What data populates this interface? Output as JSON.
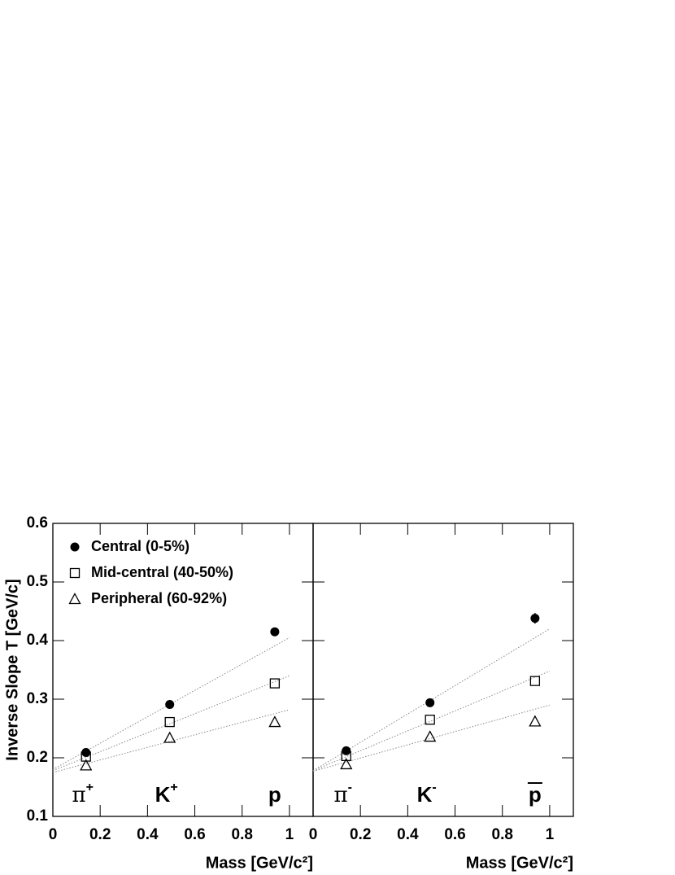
{
  "chart_data": [
    {
      "type": "scatter",
      "ylabel": "Inverse Slope T [GeV/c]",
      "xlabel": "Mass [GeV/c²]",
      "xlim": [
        0,
        1.1
      ],
      "ylim": [
        0.1,
        0.6
      ],
      "xticks": [
        0,
        0.2,
        0.4,
        0.6,
        0.8,
        1
      ],
      "yticks": [
        0.1,
        0.2,
        0.3,
        0.4,
        0.5,
        0.6
      ],
      "x": [
        0.14,
        0.494,
        0.938
      ],
      "particles": [
        {
          "text": "π",
          "sup": "+"
        },
        {
          "text": "K",
          "sup": "+"
        },
        {
          "text": "p"
        }
      ],
      "series": [
        {
          "name": "Central (0-5%)",
          "marker": "circle",
          "color": "#000",
          "values": [
            0.209,
            0.291,
            0.415
          ],
          "errors": [
            0.003,
            0.003,
            0.007
          ]
        },
        {
          "name": "Mid-central (40-50%)",
          "marker": "square",
          "color": "#000",
          "values": [
            0.202,
            0.261,
            0.327
          ]
        },
        {
          "name": "Peripheral (60-92%)",
          "marker": "triangle",
          "color": "#000",
          "values": [
            0.187,
            0.234,
            0.261
          ]
        }
      ],
      "fit_x": [
        0,
        1
      ],
      "fits": [
        {
          "values": [
            0.18,
            0.405
          ]
        },
        {
          "values": [
            0.178,
            0.34
          ]
        },
        {
          "values": [
            0.175,
            0.282
          ]
        }
      ]
    },
    {
      "type": "scatter",
      "xlabel": "Mass [GeV/c²]",
      "xlim": [
        0,
        1.1
      ],
      "ylim": [
        0.1,
        0.6
      ],
      "xticks": [
        0,
        0.2,
        0.4,
        0.6,
        0.8,
        1
      ],
      "yticks": [
        0.1,
        0.2,
        0.3,
        0.4,
        0.5,
        0.6
      ],
      "x": [
        0.14,
        0.494,
        0.938
      ],
      "particles": [
        {
          "text": "π",
          "sup": "-"
        },
        {
          "text": "K",
          "sup": "-"
        },
        {
          "text": "p",
          "overline": true
        }
      ],
      "series": [
        {
          "marker": "circle",
          "color": "#000",
          "values": [
            0.212,
            0.294,
            0.438
          ],
          "errors": [
            0.003,
            0.003,
            0.009
          ]
        },
        {
          "marker": "square",
          "color": "#000",
          "values": [
            0.203,
            0.265,
            0.331
          ]
        },
        {
          "marker": "triangle",
          "color": "#000",
          "values": [
            0.189,
            0.236,
            0.262
          ]
        }
      ],
      "fit_x": [
        0,
        1
      ],
      "fits": [
        {
          "values": [
            0.178,
            0.42
          ]
        },
        {
          "values": [
            0.178,
            0.348
          ]
        },
        {
          "values": [
            0.177,
            0.29
          ]
        }
      ]
    }
  ]
}
